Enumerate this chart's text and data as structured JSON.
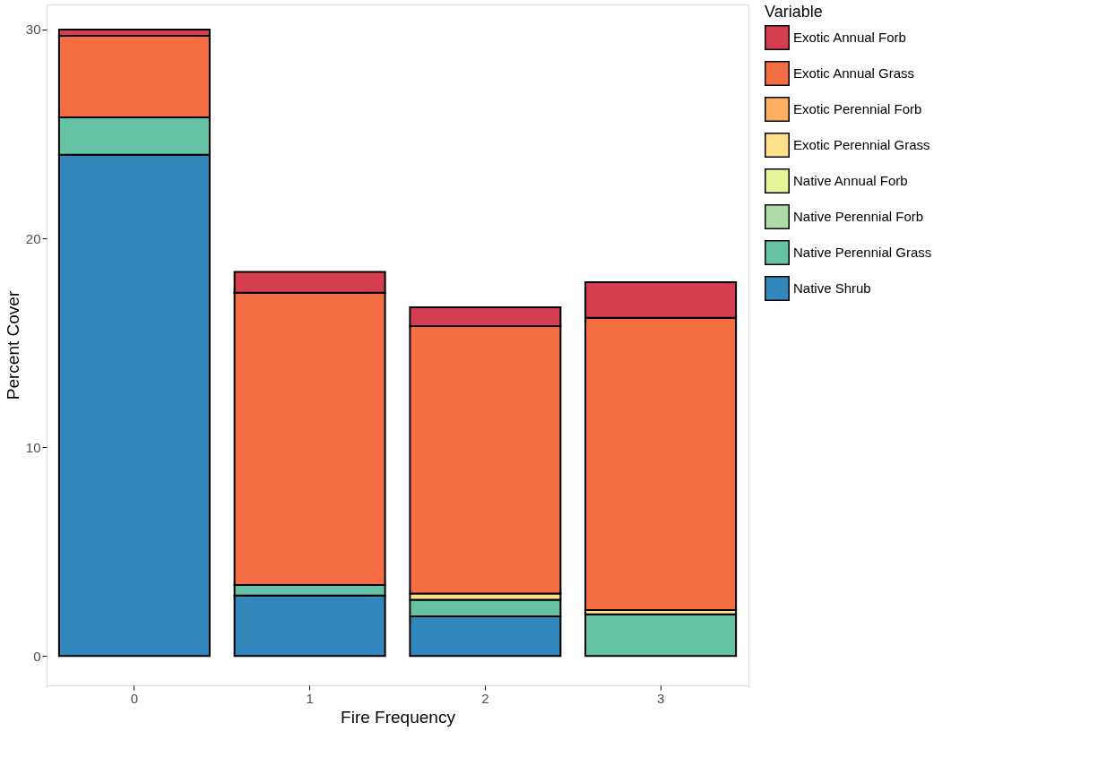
{
  "chart_data": {
    "type": "bar",
    "stacked": true,
    "xlabel": "Fire Frequency",
    "ylabel": "Percent Cover",
    "legend_title": "Variable",
    "legend": "right",
    "grid": false,
    "categories": [
      "0",
      "1",
      "2",
      "3"
    ],
    "ylim": [
      -1.4,
      31.2
    ],
    "yticks": [
      0,
      10,
      20,
      30
    ],
    "series": [
      {
        "name": "Native Shrub",
        "color": "#3288bd",
        "values": [
          24.0,
          2.9,
          1.9,
          null
        ]
      },
      {
        "name": "Native Perennial Grass",
        "color": "#66c2a5",
        "values": [
          1.8,
          0.5,
          0.8,
          2.0
        ]
      },
      {
        "name": "Native Perennial Forb",
        "color": "#abdda4",
        "values": [
          null,
          null,
          null,
          null
        ]
      },
      {
        "name": "Native Annual Forb",
        "color": "#e6f598",
        "values": [
          null,
          null,
          null,
          null
        ]
      },
      {
        "name": "Exotic Perennial Grass",
        "color": "#fee08b",
        "values": [
          null,
          null,
          0.3,
          0.2
        ]
      },
      {
        "name": "Exotic Perennial Forb",
        "color": "#fdae61",
        "values": [
          null,
          null,
          null,
          null
        ]
      },
      {
        "name": "Exotic Annual Grass",
        "color": "#f46d43",
        "values": [
          3.9,
          14.0,
          12.8,
          14.0
        ]
      },
      {
        "name": "Exotic Annual Forb",
        "color": "#d53e4f",
        "values": [
          0.3,
          1.0,
          0.9,
          1.7
        ]
      }
    ]
  }
}
